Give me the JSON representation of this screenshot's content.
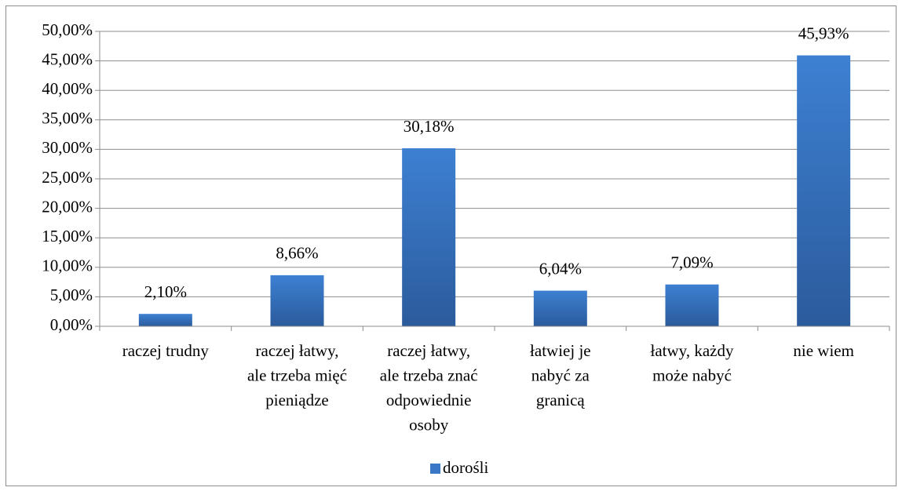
{
  "chart_data": {
    "type": "bar",
    "categories": [
      "raczej trudny",
      "raczej łatwy,\nale trzeba mięć\npieniądze",
      "raczej łatwy,\nale trzeba znać\nodpowiednie\nosoby",
      "łatwiej je\nnabyć za\ngranicą",
      "łatwy, każdy\nmoże nabyć",
      "nie wiem"
    ],
    "series": [
      {
        "name": "dorośli",
        "color": "#3a77c4",
        "values": [
          2.1,
          8.66,
          30.18,
          6.04,
          7.09,
          45.93
        ],
        "value_labels": [
          "2,10%",
          "8,66%",
          "30,18%",
          "6,04%",
          "7,09%",
          "45,93%"
        ]
      }
    ],
    "ylim": [
      0,
      50
    ],
    "yticks": [
      {
        "value": 0,
        "label": "0,00%"
      },
      {
        "value": 5,
        "label": "5,00%"
      },
      {
        "value": 10,
        "label": "10,00%"
      },
      {
        "value": 15,
        "label": "15,00%"
      },
      {
        "value": 20,
        "label": "20,00%"
      },
      {
        "value": 25,
        "label": "25,00%"
      },
      {
        "value": 30,
        "label": "30,00%"
      },
      {
        "value": 35,
        "label": "35,00%"
      },
      {
        "value": 40,
        "label": "40,00%"
      },
      {
        "value": 45,
        "label": "45,00%"
      },
      {
        "value": 50,
        "label": "50,00%"
      }
    ],
    "grid": true,
    "legend": "bottom"
  }
}
